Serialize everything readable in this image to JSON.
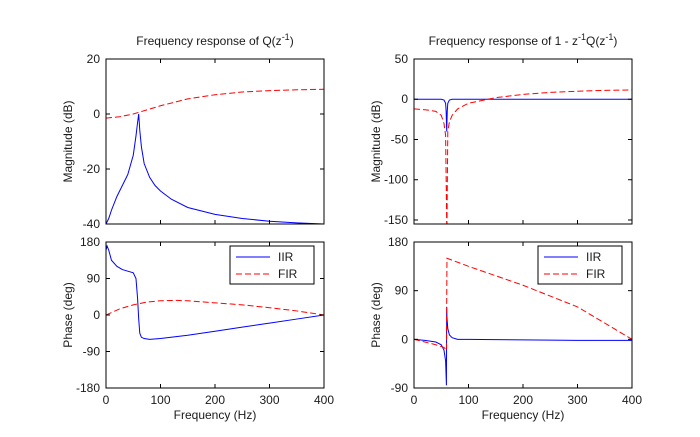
{
  "chart_data": [
    {
      "id": "tl",
      "type": "line",
      "title": "Frequency response of Q(z",
      "title_superscript": "-1",
      "title_suffix": ")",
      "xlabel": "",
      "ylabel": "Magnitude (dB)",
      "xlim": [
        0,
        400
      ],
      "ylim": [
        -40,
        20
      ],
      "xticks": [],
      "yticks": [
        20,
        0,
        -20,
        -40
      ],
      "grid": false,
      "series": [
        {
          "color": "#0000ff",
          "style": "solid",
          "x": [
            0,
            5,
            10,
            20,
            30,
            40,
            50,
            55,
            58,
            60,
            62,
            65,
            70,
            80,
            90,
            100,
            120,
            150,
            200,
            250,
            300,
            350,
            400
          ],
          "y": [
            -40,
            -38,
            -35,
            -30,
            -26,
            -22,
            -15,
            -8,
            -3,
            0,
            -6,
            -12,
            -18,
            -23,
            -26,
            -28,
            -31,
            -34,
            -36.5,
            -38,
            -39,
            -39.6,
            -40
          ]
        },
        {
          "color": "#ff0000",
          "style": "dashed",
          "x": [
            0,
            25,
            50,
            75,
            100,
            150,
            200,
            250,
            300,
            350,
            400
          ],
          "y": [
            -1.5,
            -1,
            0,
            1.5,
            3,
            5.5,
            7,
            8,
            8.5,
            8.8,
            9
          ]
        }
      ]
    },
    {
      "id": "tr",
      "type": "line",
      "title": "Frequency response of 1 - z",
      "title_superscript": "-1",
      "title_mid": "Q(z",
      "title_superscript2": "-1",
      "title_suffix": ")",
      "xlabel": "",
      "ylabel": "Magnitude (dB)",
      "xlim": [
        0,
        400
      ],
      "ylim": [
        -155,
        50
      ],
      "xticks": [],
      "yticks": [
        50,
        0,
        -50,
        -100,
        -150
      ],
      "grid": false,
      "series": [
        {
          "color": "#0000ff",
          "style": "solid",
          "x": [
            0,
            50,
            55,
            58,
            59,
            60,
            61,
            62,
            65,
            70,
            100,
            200,
            300,
            400
          ],
          "y": [
            0,
            0,
            -1,
            -5,
            -15,
            -40,
            -15,
            -5,
            -1,
            0,
            0,
            0,
            0,
            0
          ]
        },
        {
          "color": "#ff0000",
          "style": "dashed",
          "x": [
            0,
            20,
            40,
            50,
            55,
            58,
            60,
            60.5,
            62,
            65,
            70,
            80,
            100,
            150,
            200,
            250,
            300,
            350,
            400
          ],
          "y": [
            -12,
            -13,
            -15,
            -20,
            -30,
            -45,
            -155,
            -155,
            -40,
            -28,
            -20,
            -12,
            -5,
            2,
            6,
            8.5,
            10,
            11,
            11.5
          ]
        }
      ]
    },
    {
      "id": "bl",
      "type": "line",
      "title": "",
      "xlabel": "Frequency  (Hz)",
      "ylabel": "Phase (deg)",
      "xlim": [
        0,
        400
      ],
      "ylim": [
        -180,
        180
      ],
      "xticks": [
        0,
        100,
        200,
        300,
        400
      ],
      "yticks": [
        180,
        90,
        0,
        -90,
        -180
      ],
      "grid": false,
      "legend": {
        "location": "top-right",
        "entries": [
          "IIR",
          "FIR"
        ]
      },
      "series": [
        {
          "name": "IIR",
          "color": "#0000ff",
          "style": "solid",
          "x": [
            0,
            2,
            5,
            10,
            20,
            30,
            40,
            50,
            55,
            58,
            60,
            62,
            65,
            70,
            80,
            100,
            150,
            200,
            250,
            300,
            350,
            400
          ],
          "y": [
            160,
            170,
            160,
            135,
            120,
            112,
            108,
            104,
            90,
            40,
            -10,
            -45,
            -55,
            -58,
            -60,
            -58,
            -50,
            -40,
            -30,
            -20,
            -10,
            0
          ]
        },
        {
          "name": "FIR",
          "color": "#ff0000",
          "style": "dashed",
          "x": [
            0,
            25,
            50,
            75,
            100,
            130,
            150,
            200,
            250,
            300,
            350,
            400
          ],
          "y": [
            0,
            15,
            25,
            32,
            35,
            36,
            35,
            30,
            25,
            18,
            10,
            0
          ]
        }
      ]
    },
    {
      "id": "br",
      "type": "line",
      "title": "",
      "xlabel": "Frequency  (Hz)",
      "ylabel": "Phase (deg)",
      "xlim": [
        0,
        400
      ],
      "ylim": [
        -90,
        180
      ],
      "xticks": [
        0,
        100,
        200,
        300,
        400
      ],
      "yticks": [
        180,
        90,
        0,
        -90
      ],
      "grid": false,
      "legend": {
        "location": "top-right",
        "entries": [
          "IIR",
          "FIR"
        ]
      },
      "series": [
        {
          "name": "IIR",
          "color": "#0000ff",
          "style": "solid",
          "x": [
            0,
            20,
            40,
            50,
            55,
            58,
            59.5,
            60,
            60.5,
            62,
            65,
            70,
            80,
            100,
            200,
            300,
            400
          ],
          "y": [
            0,
            -2,
            -5,
            -10,
            -20,
            -40,
            -85,
            60,
            40,
            20,
            8,
            3,
            0,
            0,
            -1,
            -2,
            -2
          ]
        },
        {
          "name": "FIR",
          "color": "#ff0000",
          "style": "dashed",
          "x": [
            0,
            20,
            40,
            55,
            59.5,
            60.5,
            100,
            200,
            300,
            400
          ],
          "y": [
            0,
            -5,
            -10,
            -15,
            -20,
            150,
            135,
            100,
            60,
            0
          ]
        }
      ]
    }
  ]
}
